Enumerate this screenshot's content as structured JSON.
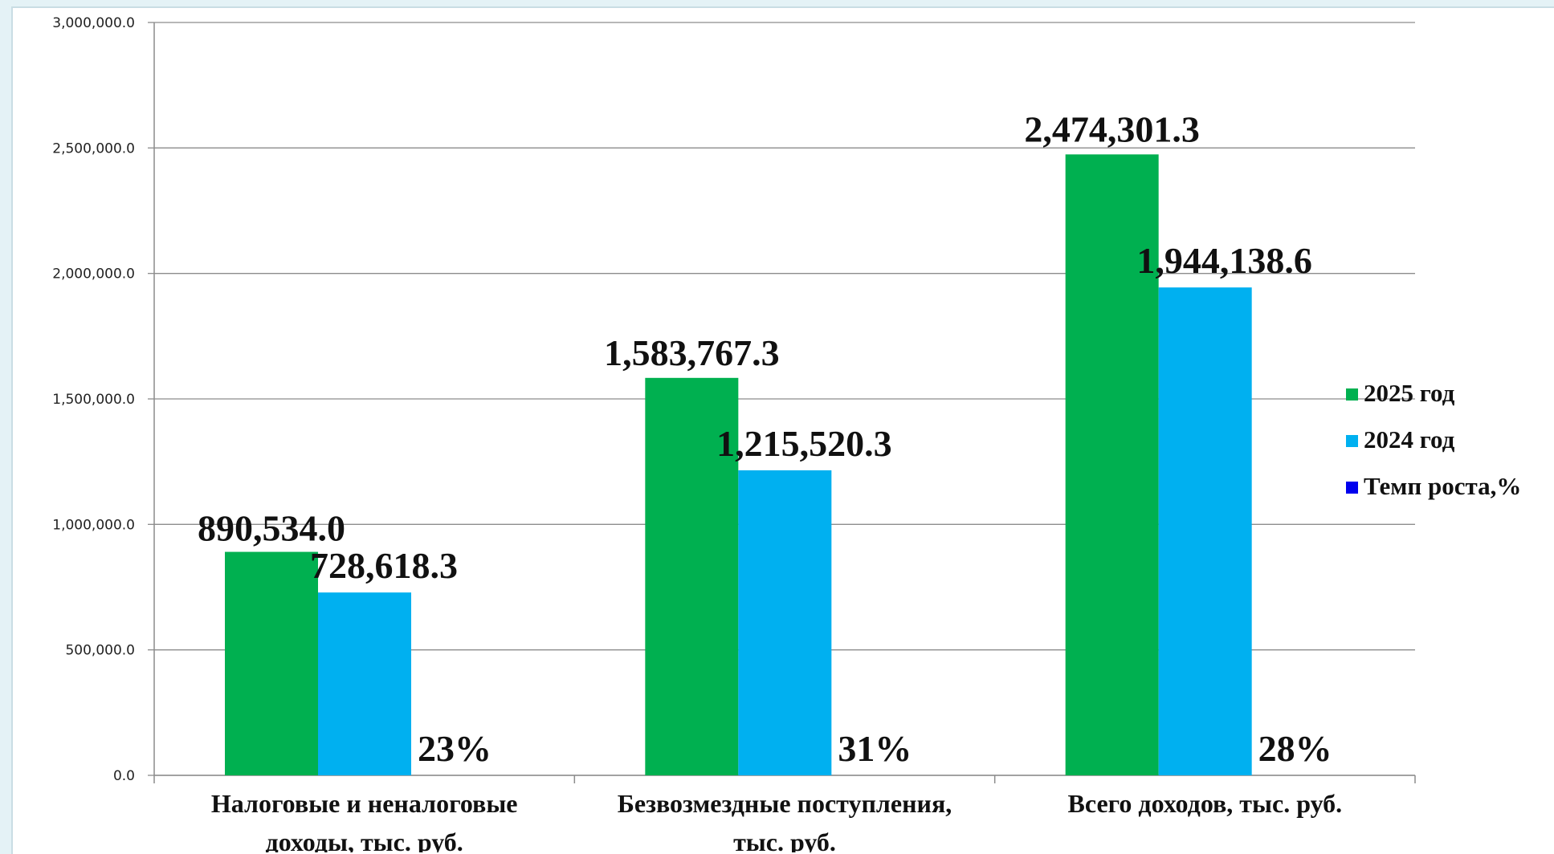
{
  "chart_data": {
    "type": "bar",
    "title": "",
    "xlabel": "",
    "ylabel": "",
    "ylim": [
      0,
      3000000
    ],
    "y_ticks": [
      {
        "value": 0,
        "label": "0.0"
      },
      {
        "value": 500000,
        "label": "500,000.0"
      },
      {
        "value": 1000000,
        "label": "1,000,000.0"
      },
      {
        "value": 1500000,
        "label": "1,500,000.0"
      },
      {
        "value": 2000000,
        "label": "2,000,000.0"
      },
      {
        "value": 2500000,
        "label": "2,500,000.0"
      },
      {
        "value": 3000000,
        "label": "3,000,000.0"
      }
    ],
    "categories": [
      [
        "Налоговые и неналоговые",
        "доходы, тыс. руб."
      ],
      [
        "Безвозмездные поступления,",
        "тыс. руб."
      ],
      [
        "Всего доходов, тыс. руб."
      ]
    ],
    "series": [
      {
        "name": "2025 год",
        "color": "#00b050",
        "values": [
          890534.0,
          1583767.3,
          2474301.3
        ],
        "labels": [
          "890,534.0",
          "1,583,767.3",
          "2,474,301.3"
        ]
      },
      {
        "name": "2024 год",
        "color": "#00b0f0",
        "values": [
          728618.3,
          1215520.3,
          1944138.6
        ],
        "labels": [
          "728,618.3",
          "1,215,520.3",
          "1,944,138.6"
        ]
      },
      {
        "name": "Темп роста,%",
        "color": "#0000ee",
        "values": [
          23,
          31,
          28
        ],
        "labels": [
          "23%",
          "31%",
          "28%"
        ]
      }
    ],
    "grid": true,
    "legend_position": "right"
  }
}
